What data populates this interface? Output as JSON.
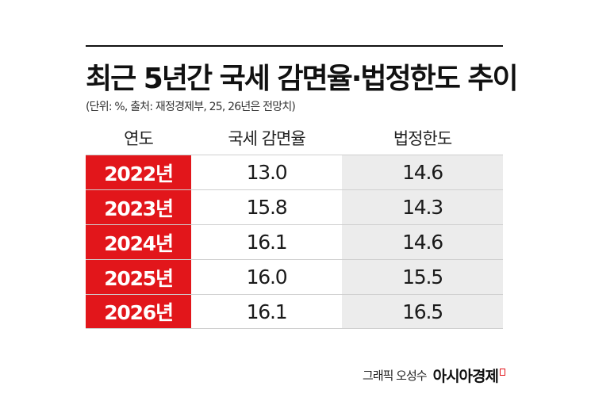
{
  "title": "최근 5년간 국세 감면율·법정한도 추이",
  "subtitle": "(단위: %, 출처: 재정경제부, 25, 26년은 전망치)",
  "chart_data": {
    "type": "table",
    "columns": [
      "연도",
      "국세 감면율",
      "법정한도"
    ],
    "rows": [
      [
        "2022년",
        "13.0",
        "14.6"
      ],
      [
        "2023년",
        "15.8",
        "14.3"
      ],
      [
        "2024년",
        "16.1",
        "14.6"
      ],
      [
        "2025년",
        "16.0",
        "15.5"
      ],
      [
        "2026년",
        "16.1",
        "16.5"
      ]
    ]
  },
  "footer": {
    "credit": "그래픽 오성수",
    "brand": "아시아경제"
  },
  "colors": {
    "year_cell": "#e2161b",
    "limit_cell": "#ececec",
    "rule": "#111111"
  }
}
